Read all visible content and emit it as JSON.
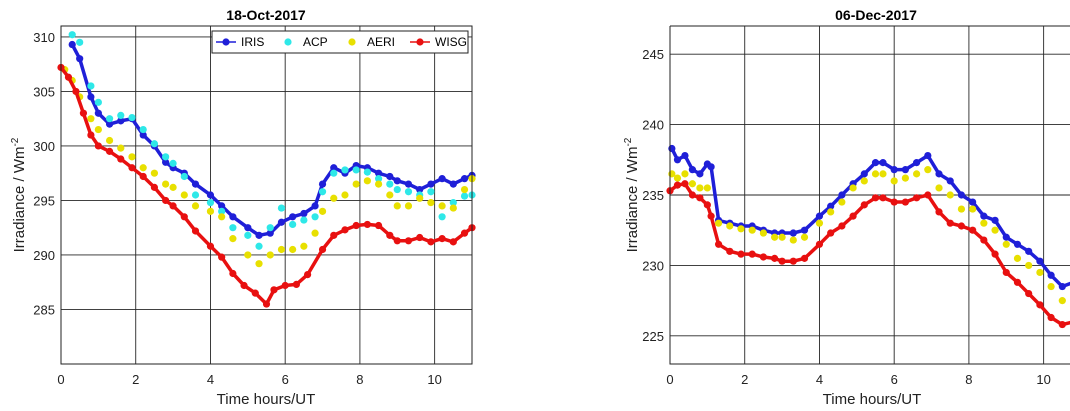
{
  "chart_data": [
    {
      "type": "scatter",
      "title": "18-Oct-2017",
      "xlabel": "Time hours/UT",
      "ylabel": "Irradiance / Wm",
      "ylabel_exponent": "-2",
      "xlim": [
        0,
        11
      ],
      "ylim": [
        280,
        311
      ],
      "xticks": [
        0,
        2,
        4,
        6,
        8,
        10
      ],
      "yticks": [
        285,
        290,
        295,
        300,
        305,
        310
      ],
      "grid": true,
      "legend": {
        "position": "top-right",
        "orientation": "horizontal"
      },
      "series": [
        {
          "name": "IRIS",
          "color": "#1f1fd8",
          "marker": "circle",
          "line": true,
          "x": [
            0.3,
            0.5,
            0.8,
            1.0,
            1.3,
            1.6,
            1.9,
            2.2,
            2.5,
            2.8,
            3.0,
            3.3,
            3.6,
            4.0,
            4.3,
            4.6,
            5.0,
            5.3,
            5.6,
            5.9,
            6.2,
            6.5,
            6.8,
            7.0,
            7.3,
            7.6,
            7.9,
            8.2,
            8.5,
            8.8,
            9.0,
            9.3,
            9.6,
            9.9,
            10.2,
            10.5,
            10.8,
            11.0
          ],
          "y": [
            309.3,
            308,
            304.5,
            303,
            302,
            302.3,
            302.5,
            301,
            300,
            298.5,
            298,
            297.5,
            296.5,
            295.5,
            294.5,
            293.5,
            292.5,
            291.8,
            292,
            293,
            293.5,
            293.8,
            294.5,
            296.5,
            298,
            297.5,
            298.2,
            298,
            297.5,
            297.2,
            296.8,
            296.5,
            296,
            296.5,
            297,
            296.5,
            297,
            297.3
          ]
        },
        {
          "name": "ACP",
          "color": "#2ee8e8",
          "marker": "circle",
          "line": false,
          "x": [
            0.3,
            0.5,
            0.8,
            1.0,
            1.3,
            1.6,
            1.9,
            2.2,
            2.5,
            2.8,
            3.0,
            3.3,
            3.6,
            4.0,
            4.3,
            4.6,
            5.0,
            5.3,
            5.6,
            5.9,
            6.2,
            6.5,
            6.8,
            7.0,
            7.3,
            7.6,
            7.9,
            8.2,
            8.5,
            8.8,
            9.0,
            9.3,
            9.6,
            9.9,
            10.2,
            10.5,
            10.8,
            11.0
          ],
          "y": [
            310.2,
            309.5,
            305.5,
            304,
            302.5,
            302.8,
            302.6,
            301.5,
            300.2,
            299,
            298.4,
            297.2,
            295.5,
            294.8,
            294,
            292.5,
            291.8,
            290.8,
            292.5,
            294.3,
            292.8,
            293.2,
            293.5,
            295.8,
            297.5,
            297.8,
            297.8,
            297.6,
            297,
            296.5,
            296,
            295.8,
            295.5,
            295.8,
            293.5,
            294.8,
            295.4,
            295.5
          ]
        },
        {
          "name": "AERI",
          "color": "#e8e000",
          "marker": "circle",
          "line": false,
          "x": [
            0.1,
            0.3,
            0.5,
            0.8,
            1.0,
            1.3,
            1.6,
            1.9,
            2.2,
            2.5,
            2.8,
            3.0,
            3.3,
            3.6,
            4.0,
            4.3,
            4.6,
            5.0,
            5.3,
            5.6,
            5.9,
            6.2,
            6.5,
            6.8,
            7.0,
            7.3,
            7.6,
            7.9,
            8.2,
            8.5,
            8.8,
            9.0,
            9.3,
            9.6,
            9.9,
            10.2,
            10.5,
            10.8,
            11.0
          ],
          "y": [
            307,
            306,
            304.5,
            302.5,
            301.5,
            300.5,
            299.8,
            299,
            298,
            297.5,
            296.5,
            296.2,
            295.5,
            294.5,
            294,
            293.5,
            291.5,
            290,
            289.2,
            290,
            290.5,
            290.5,
            290.8,
            292,
            294,
            295.2,
            295.5,
            296.5,
            296.8,
            296.5,
            295.5,
            294.5,
            294.5,
            295.2,
            294.8,
            294.5,
            294.3,
            296,
            297
          ]
        },
        {
          "name": "WISG",
          "color": "#e81010",
          "marker": "circle",
          "line": true,
          "x": [
            0.0,
            0.2,
            0.4,
            0.6,
            0.8,
            1.0,
            1.3,
            1.6,
            1.9,
            2.2,
            2.5,
            2.8,
            3.0,
            3.3,
            3.6,
            4.0,
            4.3,
            4.6,
            4.9,
            5.2,
            5.5,
            5.7,
            6.0,
            6.3,
            6.6,
            7.0,
            7.3,
            7.6,
            7.9,
            8.2,
            8.5,
            8.8,
            9.0,
            9.3,
            9.6,
            9.9,
            10.2,
            10.5,
            10.8,
            11.0
          ],
          "y": [
            307.2,
            306.3,
            305,
            303,
            301,
            300,
            299.5,
            298.8,
            298,
            297.2,
            296.2,
            295,
            294.5,
            293.5,
            292.2,
            290.8,
            289.8,
            288.3,
            287.2,
            286.5,
            285.5,
            286.8,
            287.2,
            287.3,
            288.2,
            290.5,
            291.8,
            292.3,
            292.7,
            292.8,
            292.7,
            291.8,
            291.3,
            291.3,
            291.6,
            291.2,
            291.5,
            291.2,
            292,
            292.5
          ]
        }
      ]
    },
    {
      "type": "scatter",
      "title": "06-Dec-2017",
      "xlabel": "Time hours/UT",
      "ylabel": "Irradiance / Wm",
      "ylabel_exponent": "-2",
      "xlim": [
        0,
        11
      ],
      "ylim": [
        223,
        247
      ],
      "xticks": [
        0,
        2,
        4,
        6,
        8,
        10
      ],
      "yticks": [
        225,
        230,
        235,
        240,
        245
      ],
      "grid": true,
      "series": [
        {
          "name": "IRIS",
          "color": "#1f1fd8",
          "marker": "circle",
          "line": true,
          "x": [
            0.05,
            0.2,
            0.4,
            0.6,
            0.8,
            1.0,
            1.1,
            1.3,
            1.6,
            1.9,
            2.2,
            2.5,
            2.8,
            3.0,
            3.3,
            3.6,
            4.0,
            4.3,
            4.6,
            4.9,
            5.2,
            5.5,
            5.7,
            6.0,
            6.3,
            6.6,
            6.9,
            7.2,
            7.5,
            7.8,
            8.1,
            8.4,
            8.7,
            9.0,
            9.3,
            9.6,
            9.9,
            10.2,
            10.5,
            10.8,
            11.0
          ],
          "y": [
            238.3,
            237.5,
            237.8,
            236.8,
            236.5,
            237.2,
            237,
            233.2,
            233,
            232.8,
            232.8,
            232.5,
            232.3,
            232.3,
            232.3,
            232.5,
            233.5,
            234.2,
            235,
            235.8,
            236.5,
            237.3,
            237.3,
            236.8,
            236.8,
            237.3,
            237.8,
            236.5,
            236,
            235,
            234.5,
            233.5,
            233.2,
            232,
            231.5,
            231,
            230.3,
            229.3,
            228.5,
            228.8,
            229
          ]
        },
        {
          "name": "AERI",
          "color": "#e8e000",
          "marker": "circle",
          "line": false,
          "x": [
            0.05,
            0.2,
            0.4,
            0.6,
            0.8,
            1.0,
            1.3,
            1.6,
            1.9,
            2.2,
            2.5,
            2.8,
            3.0,
            3.3,
            3.6,
            4.0,
            4.3,
            4.6,
            4.9,
            5.2,
            5.5,
            5.7,
            6.0,
            6.3,
            6.6,
            6.9,
            7.2,
            7.5,
            7.8,
            8.1,
            8.4,
            8.7,
            9.0,
            9.3,
            9.6,
            9.9,
            10.2,
            10.5,
            10.8,
            11.0
          ],
          "y": [
            236.5,
            236.2,
            236.5,
            235.8,
            235.5,
            235.5,
            233,
            232.8,
            232.6,
            232.5,
            232.3,
            232,
            232,
            231.8,
            232,
            233,
            233.8,
            234.5,
            235.5,
            236,
            236.5,
            236.5,
            236,
            236.2,
            236.5,
            236.8,
            235.5,
            235,
            234,
            234,
            233,
            232.5,
            231.5,
            230.5,
            230,
            229.5,
            228.5,
            227.5,
            227.2,
            227
          ]
        },
        {
          "name": "WISG",
          "color": "#e81010",
          "marker": "circle",
          "line": true,
          "x": [
            0.0,
            0.2,
            0.4,
            0.6,
            0.8,
            1.0,
            1.1,
            1.3,
            1.6,
            1.9,
            2.2,
            2.5,
            2.8,
            3.0,
            3.3,
            3.6,
            4.0,
            4.3,
            4.6,
            4.9,
            5.2,
            5.5,
            5.7,
            6.0,
            6.3,
            6.6,
            6.9,
            7.2,
            7.5,
            7.8,
            8.1,
            8.4,
            8.7,
            9.0,
            9.3,
            9.6,
            9.9,
            10.2,
            10.5,
            10.8,
            11.0
          ],
          "y": [
            235.3,
            235.7,
            235.8,
            235,
            234.8,
            234.3,
            233.5,
            231.5,
            231,
            230.8,
            230.8,
            230.6,
            230.5,
            230.3,
            230.3,
            230.5,
            231.5,
            232.3,
            232.8,
            233.5,
            234.3,
            234.8,
            234.8,
            234.5,
            234.5,
            234.8,
            235,
            233.8,
            233,
            232.8,
            232.5,
            231.8,
            230.8,
            229.5,
            228.8,
            228,
            227.2,
            226.3,
            225.8,
            226,
            226.1
          ]
        }
      ]
    }
  ]
}
